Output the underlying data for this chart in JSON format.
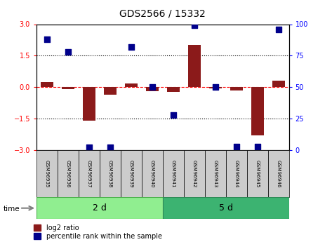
{
  "title": "GDS2566 / 15332",
  "samples": [
    "GSM96935",
    "GSM96936",
    "GSM96937",
    "GSM96938",
    "GSM96939",
    "GSM96940",
    "GSM96941",
    "GSM96942",
    "GSM96943",
    "GSM96944",
    "GSM96945",
    "GSM96946"
  ],
  "log2_ratio": [
    0.25,
    -0.08,
    -1.6,
    -0.35,
    0.18,
    -0.18,
    -0.22,
    2.0,
    -0.05,
    -0.15,
    -2.3,
    0.3
  ],
  "percentile_rank": [
    88,
    78,
    2,
    2,
    82,
    50,
    28,
    99,
    50,
    3,
    3,
    96
  ],
  "groups": [
    {
      "label": "2 d",
      "start": 0,
      "end": 5,
      "color": "#90EE90"
    },
    {
      "label": "5 d",
      "start": 6,
      "end": 11,
      "color": "#3CB371"
    }
  ],
  "ylim": [
    -3,
    3
  ],
  "y2lim": [
    0,
    100
  ],
  "yticks_left": [
    -3,
    -1.5,
    0,
    1.5,
    3
  ],
  "yticks_right": [
    0,
    25,
    50,
    75,
    100
  ],
  "dotted_lines": [
    -1.5,
    1.5
  ],
  "bar_color": "#8B1A1A",
  "dot_color": "#00008B",
  "legend_labels": [
    "log2 ratio",
    "percentile rank within the sample"
  ],
  "time_label": "time",
  "bar_width": 0.6,
  "dot_size": 35
}
